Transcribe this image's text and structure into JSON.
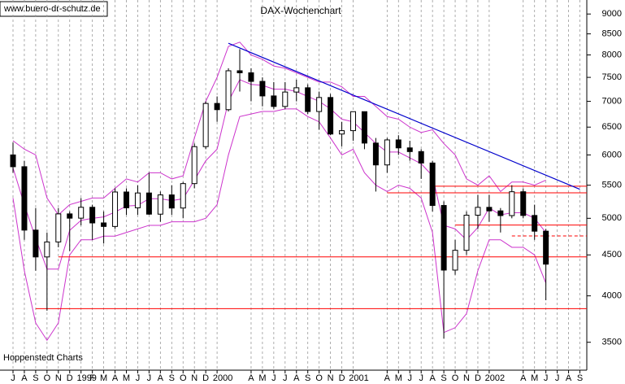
{
  "chart_data": {
    "type": "candlestick",
    "title": "DAX-Wochenchart",
    "website": "www.buero-dr-schutz.de",
    "footer": "Hoppenstedt Charts",
    "log_scale": true,
    "ylim": [
      3230,
      9370
    ],
    "yticks": [
      3500,
      4000,
      4500,
      5000,
      5500,
      6000,
      6500,
      7000,
      7500,
      8000,
      8500,
      9000
    ],
    "xticks": [
      {
        "value": "1998-07",
        "label": "J"
      },
      {
        "value": "1998-08",
        "label": "A"
      },
      {
        "value": "1998-09",
        "label": "S"
      },
      {
        "value": "1998-10",
        "label": "O"
      },
      {
        "value": "1998-11",
        "label": "N"
      },
      {
        "value": "1998-12",
        "label": "D"
      },
      {
        "value": "1999-01",
        "label": "1999"
      },
      {
        "value": "1999-02",
        "label": "F"
      },
      {
        "value": "1999-03",
        "label": "M"
      },
      {
        "value": "1999-04",
        "label": "A"
      },
      {
        "value": "1999-05",
        "label": "M"
      },
      {
        "value": "1999-06",
        "label": "J"
      },
      {
        "value": "1999-07",
        "label": "J"
      },
      {
        "value": "1999-08",
        "label": "A"
      },
      {
        "value": "1999-09",
        "label": "S"
      },
      {
        "value": "1999-10",
        "label": "O"
      },
      {
        "value": "1999-11",
        "label": "N"
      },
      {
        "value": "1999-12",
        "label": "D"
      },
      {
        "value": "2000-01",
        "label": "2000"
      },
      {
        "value": "2000-04",
        "label": "A"
      },
      {
        "value": "2000-05",
        "label": "M"
      },
      {
        "value": "2000-06",
        "label": "J"
      },
      {
        "value": "2000-07",
        "label": "J"
      },
      {
        "value": "2000-08",
        "label": "A"
      },
      {
        "value": "2000-09",
        "label": "S"
      },
      {
        "value": "2000-10",
        "label": "O"
      },
      {
        "value": "2000-11",
        "label": "N"
      },
      {
        "value": "2000-12",
        "label": "D"
      },
      {
        "value": "2001-01",
        "label": "2001"
      },
      {
        "value": "2001-04",
        "label": "A"
      },
      {
        "value": "2001-05",
        "label": "M"
      },
      {
        "value": "2001-06",
        "label": "J"
      },
      {
        "value": "2001-07",
        "label": "J"
      },
      {
        "value": "2001-08",
        "label": "A"
      },
      {
        "value": "2001-09",
        "label": "S"
      },
      {
        "value": "2001-10",
        "label": "O"
      },
      {
        "value": "2001-11",
        "label": "N"
      },
      {
        "value": "2001-12",
        "label": "D"
      },
      {
        "value": "2002-01",
        "label": "2002"
      },
      {
        "value": "2002-04",
        "label": "A"
      },
      {
        "value": "2002-05",
        "label": "M"
      },
      {
        "value": "2002-06",
        "label": "J"
      },
      {
        "value": "2002-07",
        "label": "J"
      },
      {
        "value": "2002-08",
        "label": "A"
      },
      {
        "value": "2002-09",
        "label": "S"
      }
    ],
    "candle_color": "#000000",
    "x": [
      "1998-07",
      "1998-08",
      "1998-09",
      "1998-10",
      "1998-11",
      "1998-12",
      "1999-01",
      "1999-02",
      "1999-03",
      "1999-04",
      "1999-05",
      "1999-06",
      "1999-07",
      "1999-08",
      "1999-09",
      "1999-10",
      "1999-11",
      "1999-12",
      "2000-01",
      "2000-02",
      "2000-03",
      "2000-04",
      "2000-05",
      "2000-06",
      "2000-07",
      "2000-08",
      "2000-09",
      "2000-10",
      "2000-11",
      "2000-12",
      "2001-01",
      "2001-02",
      "2001-03",
      "2001-04",
      "2001-05",
      "2001-06",
      "2001-07",
      "2001-08",
      "2001-09",
      "2001-10",
      "2001-11",
      "2001-12",
      "2002-01",
      "2002-02",
      "2002-03",
      "2002-04",
      "2002-05",
      "2002-06"
    ],
    "open": [
      6000,
      5800,
      4833,
      4474,
      4671,
      5064,
      5002,
      5161,
      4934,
      4884,
      5393,
      5153,
      5378,
      5060,
      5348,
      5150,
      5525,
      6145,
      6958,
      6835,
      7644,
      7599,
      7414,
      7110,
      6898,
      7190,
      7279,
      6798,
      7078,
      6372,
      6434,
      6795,
      6208,
      5830,
      6265,
      6123,
      6058,
      5862,
      5188,
      4308,
      4560,
      5045,
      5160,
      5108,
      5039,
      5397,
      5041,
      4818
    ],
    "high": [
      6217,
      5900,
      5150,
      4800,
      5150,
      5100,
      5300,
      5200,
      5100,
      5450,
      5450,
      5500,
      5700,
      5400,
      5500,
      5550,
      6200,
      7000,
      7100,
      7700,
      8136,
      7700,
      7500,
      7400,
      7400,
      7450,
      7350,
      7200,
      7150,
      6600,
      6800,
      6800,
      6300,
      6300,
      6350,
      6250,
      6100,
      5900,
      5250,
      4700,
      5100,
      5350,
      5350,
      5150,
      5500,
      5450,
      5200,
      4850
    ],
    "low": [
      5700,
      4700,
      4300,
      3833,
      4600,
      4550,
      4900,
      4700,
      4650,
      4850,
      5050,
      5050,
      5050,
      4950,
      5050,
      5000,
      5450,
      6100,
      6600,
      6800,
      7200,
      7000,
      6900,
      6850,
      6850,
      7000,
      6750,
      6450,
      6350,
      6150,
      6250,
      6100,
      5400,
      5700,
      6000,
      5900,
      5600,
      5100,
      3539,
      4250,
      4500,
      4850,
      4950,
      4800,
      5000,
      5000,
      4700,
      3950
    ],
    "close": [
      5800,
      4833,
      4474,
      4671,
      5064,
      5002,
      5161,
      4934,
      4884,
      5393,
      5153,
      5378,
      5060,
      5348,
      5150,
      5525,
      6145,
      6958,
      6835,
      7644,
      7599,
      7414,
      7110,
      6898,
      7190,
      7279,
      6798,
      7078,
      6372,
      6434,
      6795,
      6208,
      5830,
      6265,
      6123,
      6058,
      5862,
      5188,
      4308,
      4560,
      5045,
      5160,
      5108,
      5039,
      5397,
      5041,
      4818,
      4382
    ],
    "bands": {
      "color": "#cc33cc",
      "upper": [
        6250,
        6100,
        6000,
        5300,
        5050,
        5200,
        5250,
        5300,
        5300,
        5450,
        5600,
        5550,
        5700,
        5700,
        5600,
        5650,
        6300,
        7000,
        7500,
        8200,
        8300,
        8000,
        7900,
        7750,
        7700,
        7600,
        7500,
        7400,
        7400,
        7300,
        7100,
        7100,
        6900,
        6700,
        6650,
        6500,
        6400,
        6450,
        6200,
        6000,
        5600,
        5500,
        5650,
        5400,
        5550,
        5550,
        5500,
        5580
      ],
      "middle": [
        5780,
        5200,
        4720,
        4320,
        4320,
        4830,
        4970,
        5000,
        5020,
        5090,
        5180,
        5190,
        5290,
        5290,
        5260,
        5290,
        5580,
        5900,
        6100,
        7000,
        7450,
        7350,
        7330,
        7250,
        7250,
        7200,
        7100,
        7000,
        6850,
        6650,
        6600,
        6400,
        6200,
        6050,
        6050,
        5950,
        5850,
        5650,
        4900,
        4850,
        4700,
        4870,
        5150,
        5050,
        5080,
        5080,
        5000,
        4800
      ],
      "lower": [
        5300,
        4300,
        3700,
        3520,
        3700,
        4500,
        4700,
        4700,
        4750,
        4750,
        4800,
        4850,
        4900,
        4900,
        4950,
        4950,
        4950,
        5000,
        5200,
        6000,
        6700,
        6750,
        6800,
        6800,
        6850,
        6850,
        6700,
        6600,
        6300,
        6000,
        6100,
        5700,
        5500,
        5400,
        5500,
        5450,
        5300,
        4800,
        3600,
        3650,
        3800,
        4300,
        4700,
        4700,
        4600,
        4600,
        4500,
        4150
      ]
    },
    "levels": {
      "color": "#ff0000",
      "items": [
        {
          "value": 5483,
          "from": "2001-08",
          "dashed": false
        },
        {
          "value": 5380,
          "from": "2001-04",
          "dashed": false
        },
        {
          "value": 4904,
          "from": "2001-10",
          "dashed": false
        },
        {
          "value": 4752,
          "from": "2002-03",
          "dashed": true
        },
        {
          "value": 4475,
          "from": "1998-11",
          "dashed": false
        },
        {
          "value": 3855,
          "from": "1998-09",
          "dashed": false
        }
      ],
      "to": "2002-09"
    },
    "trendline": {
      "color": "#0000cc",
      "x": [
        "2000-02",
        "2002-09"
      ],
      "y": [
        8274,
        5435
      ]
    }
  }
}
